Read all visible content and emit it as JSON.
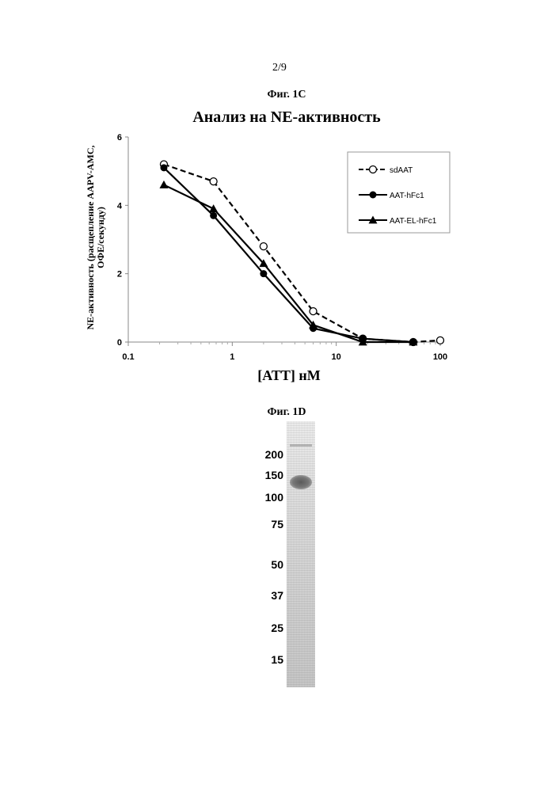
{
  "page_number": "2/9",
  "figure_1c": {
    "label": "Фиг. 1C"
  },
  "figure_1d": {
    "label": "Фиг. 1D",
    "markers": [
      "200",
      "150",
      "100",
      "75",
      "50",
      "37",
      "25",
      "15"
    ]
  },
  "chart_data": {
    "type": "line",
    "title": "Анализ на NE-активность",
    "xlabel": "[ATT] нМ",
    "ylabel_line1": "NE-активность (расщепление AAPV-AMC,",
    "ylabel_line2": "ОФЕ/секунду)",
    "x_scale": "log",
    "xlim": [
      0.1,
      100
    ],
    "ylim": [
      0,
      6
    ],
    "x_ticks": [
      "0.1",
      "1",
      "10",
      "100"
    ],
    "y_ticks": [
      "0",
      "2",
      "4",
      "6"
    ],
    "x": [
      0.22,
      0.66,
      2,
      6,
      18,
      55,
      100
    ],
    "series": [
      {
        "name": "sdAAT",
        "style": "dashed",
        "marker": "open-circle",
        "values": [
          5.2,
          4.7,
          2.8,
          0.9,
          0.1,
          0.0,
          0.05
        ]
      },
      {
        "name": "AAT-hFc1",
        "style": "solid",
        "marker": "filled-circle",
        "values": [
          5.1,
          3.7,
          2.0,
          0.4,
          0.1,
          0.0,
          null
        ]
      },
      {
        "name": "AAT-EL-hFc1",
        "style": "solid",
        "marker": "filled-triangle",
        "values": [
          4.6,
          3.9,
          2.3,
          0.5,
          0.0,
          0.0,
          null
        ]
      }
    ],
    "legend_position": "top-right"
  }
}
